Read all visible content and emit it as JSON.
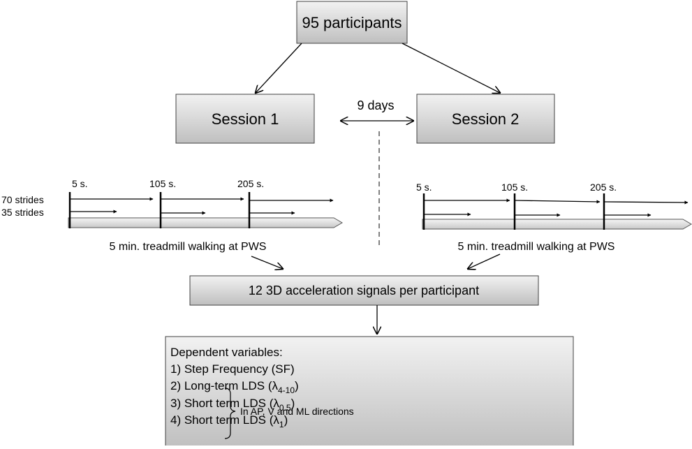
{
  "nodes": {
    "participants": "95 participants",
    "session_1": "Session 1",
    "session_2": "Session 2",
    "interval": "9 days",
    "signals": "12 3D acceleration signals per participant"
  },
  "timeline_left": {
    "markers": [
      "5 s.",
      "105 s.",
      "205 s."
    ],
    "rows": [
      "70 strides",
      "35 strides"
    ],
    "caption": "5 min. treadmill walking at PWS"
  },
  "timeline_right": {
    "markers": [
      "5 s.",
      "105 s.",
      "205 s."
    ],
    "caption": "5 min. treadmill walking at PWS"
  },
  "dependent": {
    "heading": "Dependent variables:",
    "items": [
      {
        "text": "1) Step Frequency (SF)"
      },
      {
        "text": "2) Long-term LDS (λ",
        "sub": "4-10",
        "tail": ")"
      },
      {
        "text": "3) Short term LDS (λ",
        "sub": "0.5",
        "tail": ")"
      },
      {
        "text": "4) Short term LDS (λ",
        "sub": "1",
        "tail": ")"
      }
    ],
    "note": "In AP, V and ML directions"
  }
}
